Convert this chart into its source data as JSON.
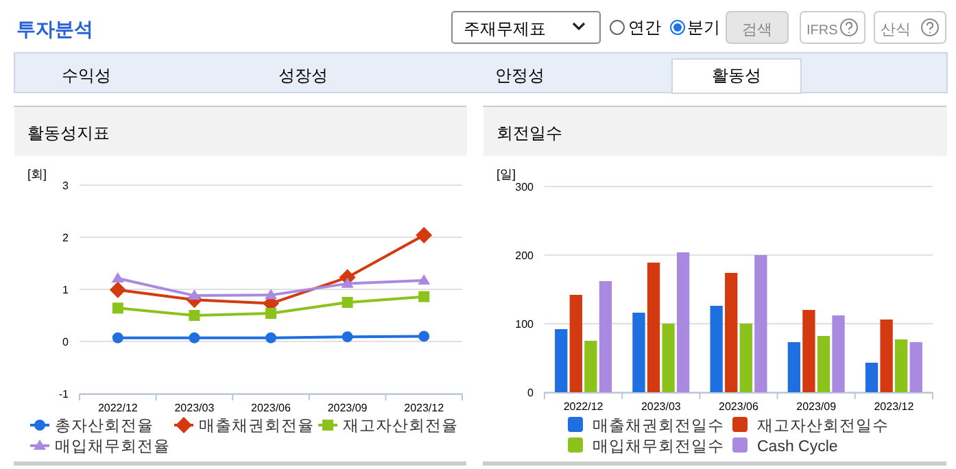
{
  "chart_data": [
    {
      "type": "other",
      "title": "투자분석",
      "annotations": [
        "주재무제표",
        "연간",
        "분기",
        "검색",
        "IFRS",
        "산식",
        "수익성",
        "성장성",
        "안정성",
        "활동성"
      ]
    },
    {
      "type": "line",
      "title": "활동성지표",
      "ylabel": "[회]",
      "categories": [
        "2022/12",
        "2023/03",
        "2023/06",
        "2023/09",
        "2023/12"
      ],
      "ylim": [
        -1,
        3
      ],
      "yticks": [
        -1,
        0,
        1,
        2,
        3
      ],
      "grid": "y",
      "legend": "bottom",
      "series": [
        {
          "name": "총자산회전율",
          "color": "#1f6fe0",
          "marker": "circle",
          "values": [
            0.07,
            0.07,
            0.07,
            0.09,
            0.1
          ]
        },
        {
          "name": "매출채권회전율",
          "color": "#d43a10",
          "marker": "diamond",
          "values": [
            0.99,
            0.8,
            0.73,
            1.23,
            2.04
          ]
        },
        {
          "name": "재고자산회전율",
          "color": "#8cc21c",
          "marker": "square",
          "values": [
            0.64,
            0.5,
            0.54,
            0.75,
            0.86
          ]
        },
        {
          "name": "매입채무회전율",
          "color": "#a98ae0",
          "marker": "triangle",
          "values": [
            1.21,
            0.88,
            0.89,
            1.11,
            1.17
          ]
        }
      ]
    },
    {
      "type": "bar",
      "title": "회전일수",
      "ylabel": "[일]",
      "categories": [
        "2022/12",
        "2023/03",
        "2023/06",
        "2023/09",
        "2023/12"
      ],
      "ylim": [
        0,
        300
      ],
      "yticks": [
        0,
        100,
        200,
        300
      ],
      "grid": "y",
      "legend": "bottom",
      "series": [
        {
          "name": "매출채권회전일수",
          "color": "#1f6fe0",
          "values": [
            92,
            116,
            126,
            73,
            43
          ]
        },
        {
          "name": "재고자산회전일수",
          "color": "#d43a10",
          "values": [
            142,
            189,
            174,
            120,
            106
          ]
        },
        {
          "name": "매입채무회전일수",
          "color": "#8cc21c",
          "values": [
            75,
            100,
            100,
            82,
            77
          ]
        },
        {
          "name": "Cash Cycle",
          "color": "#a98ae0",
          "values": [
            162,
            204,
            200,
            112,
            73
          ]
        }
      ]
    }
  ]
}
